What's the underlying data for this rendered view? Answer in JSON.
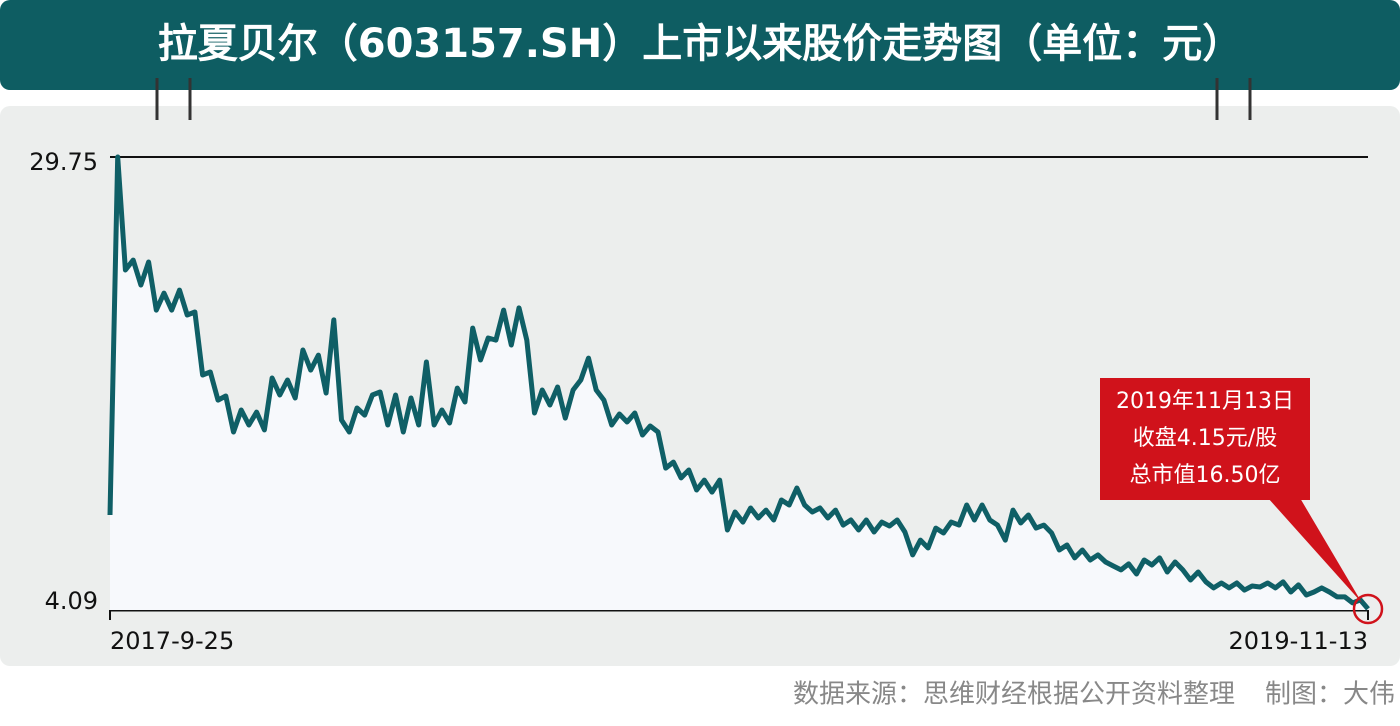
{
  "chart_data": {
    "type": "line",
    "title": "拉夏贝尔（603157.SH）上市以来股价走势图（单位：元）",
    "categories": [
      "2017-9-25",
      null,
      null,
      null,
      null,
      null,
      null,
      null,
      null,
      null,
      null,
      null,
      null,
      null,
      null,
      null,
      null,
      null,
      null,
      null,
      null,
      null,
      null,
      null,
      null,
      null,
      null,
      null,
      null,
      null,
      null,
      null,
      null,
      null,
      null,
      null,
      null,
      null,
      null,
      null,
      null,
      null,
      null,
      null,
      null,
      null,
      null,
      null,
      null,
      null,
      null,
      null,
      null,
      null,
      null,
      null,
      null,
      null,
      null,
      null,
      null,
      null,
      null,
      null,
      null,
      null,
      null,
      null,
      null,
      null,
      null,
      null,
      null,
      null,
      null,
      null,
      null,
      null,
      null,
      null,
      null,
      null,
      null,
      null,
      null,
      null,
      null,
      null,
      null,
      null,
      null,
      null,
      null,
      null,
      null,
      null,
      null,
      null,
      null,
      null,
      null,
      null,
      null,
      null,
      null,
      null,
      null,
      null,
      null,
      null,
      null,
      null,
      null,
      null,
      null,
      null,
      null,
      null,
      null,
      null,
      null,
      null,
      null,
      null,
      null,
      null,
      null,
      null,
      null,
      null,
      null,
      null,
      null,
      null,
      null,
      null,
      null,
      null,
      null,
      null,
      null,
      null,
      null,
      null,
      null,
      null,
      null,
      null,
      null,
      null,
      null,
      null,
      null,
      null,
      null,
      null,
      null,
      null,
      null,
      null,
      null,
      null,
      null,
      "2019-11-13"
    ],
    "values": [
      9.47,
      29.75,
      23.35,
      23.91,
      22.5,
      23.8,
      21.08,
      22.04,
      21.08,
      22.21,
      20.8,
      20.97,
      17.4,
      17.57,
      15.98,
      16.21,
      14.17,
      15.42,
      14.57,
      15.3,
      14.29,
      17.23,
      16.27,
      17.12,
      16.1,
      18.82,
      17.68,
      18.53,
      16.38,
      20.52,
      14.85,
      14.17,
      15.53,
      15.13,
      16.27,
      16.44,
      14.57,
      16.27,
      14.17,
      16.1,
      14.57,
      18.14,
      14.57,
      15.42,
      14.68,
      16.66,
      15.87,
      20.06,
      18.25,
      19.5,
      19.38,
      21.08,
      19.1,
      21.2,
      19.38,
      15.25,
      16.55,
      15.7,
      16.72,
      14.96,
      16.55,
      17.12,
      18.36,
      16.55,
      15.98,
      14.57,
      15.19,
      14.74,
      15.25,
      14.0,
      14.51,
      14.17,
      12.13,
      12.47,
      11.57,
      12.02,
      10.89,
      11.45,
      10.77,
      11.45,
      8.62,
      9.64,
      9.07,
      9.87,
      9.3,
      9.75,
      9.19,
      10.32,
      10.04,
      11.0,
      10.04,
      9.64,
      9.87,
      9.3,
      9.75,
      8.9,
      9.19,
      8.62,
      9.19,
      8.51,
      9.07,
      8.85,
      9.19,
      8.51,
      7.21,
      8.05,
      7.6,
      8.73,
      8.45,
      9.07,
      8.9,
      10.04,
      9.19,
      10.04,
      9.19,
      8.9,
      8.05,
      9.75,
      9.02,
      9.47,
      8.73,
      8.9,
      8.45,
      7.49,
      7.77,
      7.04,
      7.49,
      6.92,
      7.21,
      6.81,
      6.58,
      6.36,
      6.7,
      6.13,
      6.92,
      6.64,
      7.04,
      6.24,
      6.81,
      6.36,
      5.79,
      6.24,
      5.68,
      5.34,
      5.62,
      5.34,
      5.62,
      5.22,
      5.45,
      5.39,
      5.62,
      5.34,
      5.68,
      5.11,
      5.51,
      4.94,
      5.11,
      5.34,
      5.11,
      4.83,
      4.83,
      4.49,
      4.66,
      4.15
    ],
    "color": "#0f5f66",
    "ylim": [
      4.09,
      29.75
    ],
    "yticks": [
      4.09,
      29.75
    ],
    "annotation": [
      "2019年11月13日",
      "收盘4.15元/股",
      "总市值16.50亿"
    ],
    "source": "数据来源：思维财经根据公开资料整理",
    "credit": "制图：大伟"
  }
}
